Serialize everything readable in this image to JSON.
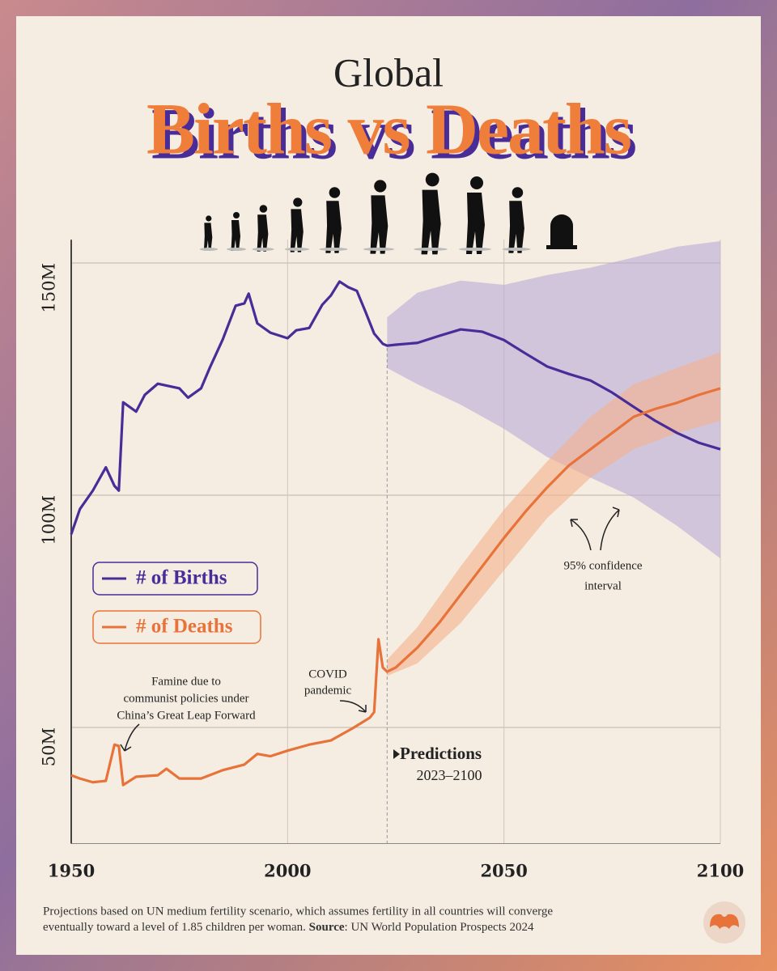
{
  "chart_data": {
    "type": "line",
    "title_top": "Global",
    "title": "Births vs Deaths",
    "xlim": [
      1950,
      2100
    ],
    "xticks": [
      1950,
      2000,
      2050,
      2100
    ],
    "ylim": [
      25,
      155
    ],
    "yticks": [
      {
        "value": 50,
        "label": "50M"
      },
      {
        "value": 100,
        "label": "100M"
      },
      {
        "value": 150,
        "label": "150M"
      }
    ],
    "grid": true,
    "series": [
      {
        "name": "# of Births",
        "color": "#4a2c98",
        "x": [
          1950,
          1952,
          1955,
          1958,
          1960,
          1961,
          1962,
          1965,
          1967,
          1970,
          1975,
          1977,
          1980,
          1982,
          1985,
          1988,
          1990,
          1991,
          1993,
          1996,
          2000,
          2002,
          2005,
          2008,
          2010,
          2012,
          2014,
          2016,
          2018,
          2020,
          2022,
          2023,
          2025,
          2030,
          2035,
          2040,
          2045,
          2050,
          2055,
          2060,
          2065,
          2070,
          2075,
          2080,
          2085,
          2090,
          2095,
          2100
        ],
        "values": [
          91.6,
          97,
          101,
          106,
          102,
          101,
          120,
          118,
          121.6,
          124,
          123,
          121,
          123,
          127.4,
          133.5,
          140.8,
          141.3,
          143.4,
          137,
          135,
          133.8,
          135.5,
          136,
          141,
          143,
          146,
          144.8,
          144,
          139.5,
          134.8,
          132.6,
          132.2,
          132.4,
          132.8,
          134.3,
          135.7,
          135.2,
          133.4,
          130.5,
          127.7,
          126.1,
          124.7,
          122.1,
          119,
          116,
          113.4,
          111.3,
          109.9
        ],
        "band": {
          "color": "#b9aad8",
          "x": [
            2023,
            2030,
            2040,
            2050,
            2060,
            2070,
            2080,
            2090,
            2100
          ],
          "upper": [
            138.3,
            143.6,
            146.2,
            145.3,
            147.4,
            149,
            151.2,
            153.5,
            154.7
          ],
          "lower": [
            127.4,
            123.9,
            119.5,
            114.3,
            108.2,
            103.8,
            99.5,
            93.4,
            86.4
          ]
        }
      },
      {
        "name": "# of Deaths",
        "color": "#e8733a",
        "x": [
          1950,
          1952,
          1955,
          1958,
          1960,
          1961,
          1962,
          1965,
          1970,
          1972,
          1975,
          1980,
          1985,
          1990,
          1993,
          1996,
          2000,
          2005,
          2010,
          2015,
          2019,
          2020,
          2021,
          2022,
          2023,
          2025,
          2030,
          2035,
          2040,
          2045,
          2050,
          2055,
          2060,
          2065,
          2070,
          2075,
          2080,
          2085,
          2090,
          2095,
          2100
        ],
        "values": [
          39.7,
          39,
          38.2,
          38.5,
          46.3,
          46,
          37.6,
          39.4,
          39.7,
          41.1,
          39,
          39,
          40.8,
          42,
          44.3,
          43.8,
          45,
          46.3,
          47.2,
          49.8,
          52.1,
          53.3,
          69,
          62.9,
          62,
          62.9,
          67.2,
          72.5,
          78.6,
          84.7,
          90.8,
          96.5,
          101.7,
          106.4,
          109.9,
          113.4,
          116.9,
          118.6,
          119.9,
          121.6,
          123
        ],
        "band": {
          "color": "#f3b08c",
          "x": [
            2023,
            2030,
            2040,
            2050,
            2060,
            2070,
            2080,
            2090,
            2100
          ],
          "upper": [
            64.6,
            71.6,
            84.7,
            96.9,
            107.3,
            116.9,
            123.9,
            127.4,
            130.8
          ],
          "lower": [
            61.1,
            63.8,
            72.5,
            83.8,
            95.1,
            103.8,
            109.9,
            113.4,
            116
          ]
        }
      }
    ],
    "annotations": {
      "famine": [
        "Famine due to",
        "communist policies under",
        "China’s Great Leap Forward"
      ],
      "covid": [
        "COVID",
        "pandemic"
      ],
      "confidence": [
        "95% confidence",
        "interval"
      ],
      "predictions": {
        "label": "Predictions",
        "range": "2023–2100"
      }
    },
    "footer": {
      "note_lines": [
        "Projections based on UN medium fertility scenario, which assumes fertility in all countries will converge",
        "eventually toward a level of 1.85 children per woman. "
      ],
      "source_label": "Source",
      "source": ": UN World Population Prospects 2024"
    }
  }
}
